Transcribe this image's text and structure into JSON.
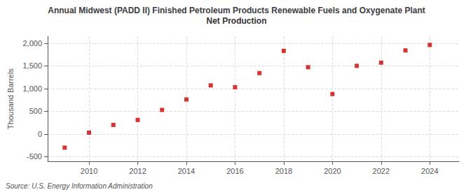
{
  "chart_data": {
    "type": "scatter",
    "title": "Annual Midwest (PADD II) Finished Petroleum Products Renewable Fuels and Oxygenate Plant",
    "subtitle": "Net Production",
    "ylabel": "Thousand Barrels",
    "annotations": [
      "Source: U.S. Energy Information Administration"
    ],
    "x": [
      2009,
      2010,
      2011,
      2012,
      2013,
      2014,
      2015,
      2016,
      2017,
      2018,
      2019,
      2020,
      2021,
      2022,
      2023,
      2024
    ],
    "values": [
      -300,
      30,
      200,
      310,
      530,
      760,
      1070,
      1030,
      1340,
      1830,
      1470,
      880,
      1500,
      1570,
      1840,
      1960
    ],
    "color": "#cc0000",
    "marker": "square",
    "xlim": [
      2008.3,
      2025.2
    ],
    "xticks": [
      2010,
      2012,
      2014,
      2016,
      2018,
      2020,
      2022,
      2024
    ],
    "ylim": [
      -600,
      2150
    ],
    "yticks": [
      -500,
      0,
      500,
      {
        "value": 1000,
        "label": "1,000"
      },
      {
        "value": 1500,
        "label": "1,500"
      },
      {
        "value": 2000,
        "label": "2,000"
      }
    ],
    "grid": true
  }
}
